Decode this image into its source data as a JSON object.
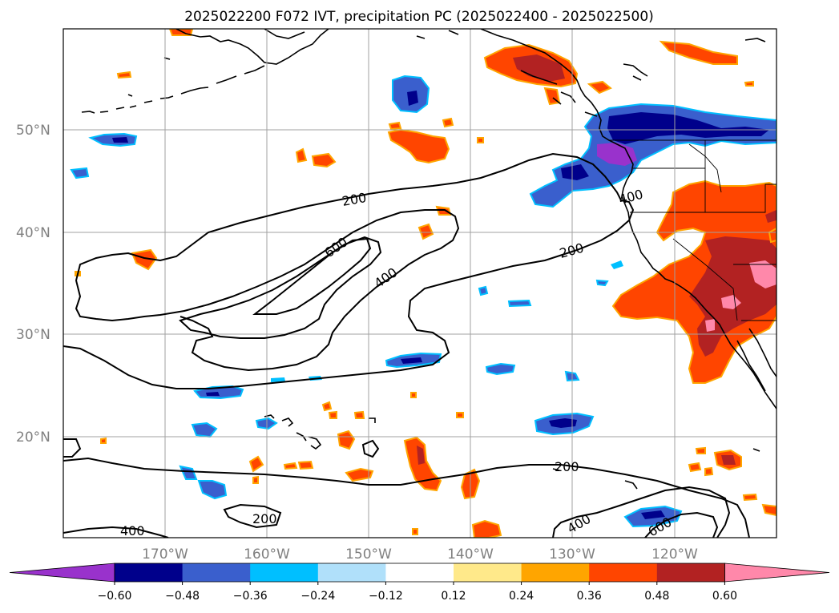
{
  "title": "2025022200 F072 IVT, precipitation PC (2025022400 - 2025022500)",
  "lat_labels": [
    "50°N",
    "40°N",
    "30°N",
    "20°N"
  ],
  "lon_labels": [
    "170°W",
    "160°W",
    "150°W",
    "140°W",
    "130°W",
    "120°W"
  ],
  "contour_labels": [
    "200",
    "600",
    "400",
    "200",
    "400",
    "200",
    "200",
    "400",
    "400",
    "600"
  ],
  "colorbar": {
    "tick_labels": [
      "−0.60",
      "−0.48",
      "−0.36",
      "−0.24",
      "−0.12",
      "0.12",
      "0.24",
      "0.36",
      "0.48",
      "0.60"
    ],
    "colors": [
      "#9932cc",
      "#00008b",
      "#3a5fcd",
      "#00bfff",
      "#b0e0fa",
      "#ffffff",
      "#ffe98a",
      "#ffa500",
      "#ff4500",
      "#b22222",
      "#ff88aa"
    ]
  },
  "colors": {
    "neg_strong": "#00008b",
    "neg_med": "#3a5fcd",
    "neg_light": "#00bfff",
    "neg_pale": "#b0e0fa",
    "purple": "#9932cc",
    "pos_pale": "#ffe98a",
    "pos_light": "#ffa500",
    "pos_med": "#ff4500",
    "pos_strong": "#b22222",
    "pink": "#ff88aa"
  }
}
